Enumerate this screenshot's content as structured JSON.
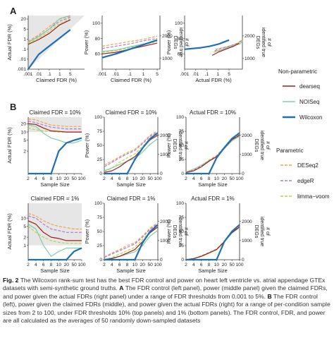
{
  "panels": {
    "A": "A",
    "B": "B"
  },
  "colors": {
    "dearseq": "#a01c1c",
    "NOISeq": "#7fcfa6",
    "Wilcoxon": "#1f6fb2",
    "DESeq2": "#f1a24c",
    "edgeR": "#b07ccf",
    "limma-voom": "#b8d44b",
    "shade": "#e6e6e6"
  },
  "labels": {
    "actual_fdr": "Actual FDR (%)",
    "claimed_fdr": "Claimed FDR (%)",
    "actual_fdr_x": "Actual FDR (%)",
    "power": "Power (%)",
    "degs_line1": "# of",
    "degs_line2": "identified true",
    "degs_line3": "DEGs",
    "sample_size": "Sample Size",
    "title_claimed10": "Claimed FDR = 10%",
    "title_actual10": "Actual FDR = 10%",
    "title_claimed1": "Claimed FDR = 1%",
    "title_actual1": "Actual FDR = 1%"
  },
  "ticks": {
    "fdr_log": [
      ".001",
      ".01",
      ".1",
      "1",
      "5",
      "20"
    ],
    "claimed_x": [
      ".001",
      ".01",
      ".1",
      "1",
      "5",
      "20"
    ],
    "sample_x": [
      "2",
      "4",
      "6",
      "8",
      "10",
      "20",
      "50",
      "100"
    ],
    "power_A": [
      "60",
      "80",
      "100"
    ],
    "degs_A": [
      "2000",
      "1000"
    ],
    "actual_fdr_B": [
      "2",
      "5",
      "10",
      "20"
    ],
    "power_B": [
      "0",
      "25",
      "50",
      "75",
      "100"
    ],
    "degs_B": [
      "2000",
      "1000",
      "0"
    ]
  },
  "legend": {
    "nonparam_title": "Non-parametric",
    "param_title": "Parametric",
    "nonparam": [
      {
        "name": "dearseq",
        "color": "#a01c1c",
        "dashed": false
      },
      {
        "name": "NOISeq",
        "color": "#7fcfa6",
        "dashed": false
      },
      {
        "name": "Wilcoxon",
        "color": "#1f6fb2",
        "dashed": false
      }
    ],
    "param": [
      {
        "name": "DESeq2",
        "color": "#f1a24c",
        "dashed": true
      },
      {
        "name": "edgeR",
        "color": "#b07ccf",
        "dashed": true
      },
      {
        "name": "limma−voom",
        "color": "#b8d44b",
        "dashed": true
      }
    ]
  },
  "chart_data": [
    {
      "type": "line",
      "panel": "A-left",
      "xlabel": "Claimed FDR (%)",
      "ylabel": "Actual FDR (%)",
      "x_scale": "log",
      "y_scale": "log",
      "x": [
        0.001,
        0.01,
        0.1,
        1,
        5
      ],
      "series": [
        {
          "name": "dearseq",
          "values": [
            0.3,
            0.9,
            2.5,
            9,
            18
          ]
        },
        {
          "name": "NOISeq",
          "values": [
            0.5,
            1.5,
            5,
            22,
            40
          ]
        },
        {
          "name": "Wilcoxon",
          "values": [
            0.001,
            0.03,
            0.2,
            1.2,
            4.5
          ]
        },
        {
          "name": "DESeq2",
          "values": [
            0.6,
            2,
            7,
            20,
            35
          ]
        },
        {
          "name": "edgeR",
          "values": [
            0.5,
            1.6,
            5,
            15,
            28
          ]
        },
        {
          "name": "limma-voom",
          "values": [
            0.4,
            1.2,
            3.5,
            11,
            20
          ]
        }
      ]
    },
    {
      "type": "line",
      "panel": "A-middle",
      "xlabel": "Claimed FDR (%)",
      "ylabel": "Power (%)",
      "x_scale": "log",
      "x": [
        0.001,
        0.01,
        0.1,
        1,
        5
      ],
      "series": [
        {
          "name": "dearseq",
          "values": [
            60,
            62,
            66,
            70,
            74
          ]
        },
        {
          "name": "NOISeq",
          "values": [
            63,
            65,
            69,
            73,
            77
          ]
        },
        {
          "name": "Wilcoxon",
          "values": [
            55,
            60,
            66,
            72,
            78
          ]
        },
        {
          "name": "DESeq2",
          "values": [
            70,
            73,
            76,
            79,
            83
          ]
        },
        {
          "name": "edgeR",
          "values": [
            67,
            70,
            73,
            77,
            80
          ]
        },
        {
          "name": "limma-voom",
          "values": [
            62,
            64,
            68,
            72,
            76
          ]
        }
      ]
    },
    {
      "type": "line",
      "panel": "A-right",
      "xlabel": "Actual FDR (%)",
      "ylabel": "Power (%)",
      "x_scale": "log",
      "series": [
        {
          "name": "dearseq",
          "x": [
            0.3,
            1,
            3,
            9,
            18
          ],
          "values": [
            58,
            62,
            66,
            70,
            74
          ]
        },
        {
          "name": "NOISeq",
          "x": [
            0.5,
            1.5,
            5,
            20,
            30
          ],
          "values": [
            63,
            65,
            69,
            73,
            77
          ]
        },
        {
          "name": "Wilcoxon",
          "x": [
            0.001,
            0.03,
            0.2,
            1.2,
            5
          ],
          "values": [
            66,
            68,
            70,
            73,
            78
          ]
        },
        {
          "name": "DESeq2",
          "x": [
            0.6,
            2,
            7,
            20,
            30
          ],
          "values": [
            66,
            68,
            71,
            75,
            79
          ]
        },
        {
          "name": "edgeR",
          "x": [
            0.5,
            1.6,
            5,
            15,
            25
          ],
          "values": [
            64,
            67,
            70,
            74,
            78
          ]
        },
        {
          "name": "limma-voom",
          "x": [
            0.4,
            1.2,
            3.5,
            11,
            20
          ],
          "values": [
            62,
            64,
            68,
            72,
            76
          ]
        }
      ]
    },
    {
      "type": "line",
      "panel": "B-top-left",
      "title": "Claimed FDR = 10%",
      "xlabel": "Sample Size",
      "ylabel": "Actual FDR (%)",
      "x": [
        2,
        4,
        6,
        8,
        10,
        20,
        50,
        100
      ],
      "series": [
        {
          "name": "dearseq",
          "values": [
            20,
            19,
            14,
            11,
            10.5,
            10,
            10,
            10
          ]
        },
        {
          "name": "NOISeq",
          "values": [
            18,
            16,
            9,
            6,
            5,
            4,
            4,
            5
          ]
        },
        {
          "name": "Wilcoxon",
          "values": [
            0.001,
            0.001,
            0.001,
            0.001,
            2,
            4,
            5,
            6
          ]
        },
        {
          "name": "DESeq2",
          "values": [
            30,
            28,
            22,
            18,
            17,
            16,
            16,
            16
          ]
        },
        {
          "name": "edgeR",
          "values": [
            25,
            22,
            18,
            15,
            14,
            13,
            13,
            13
          ]
        },
        {
          "name": "limma-voom",
          "values": [
            14,
            12,
            11,
            10.5,
            10,
            10,
            10,
            10
          ]
        }
      ]
    },
    {
      "type": "line",
      "panel": "B-top-middle",
      "title": "Claimed FDR = 10%",
      "xlabel": "Sample Size",
      "ylabel": "Power (%)",
      "x": [
        2,
        4,
        6,
        8,
        10,
        20,
        50,
        100
      ],
      "series": [
        {
          "name": "dearseq",
          "values": [
            2,
            5,
            12,
            22,
            30,
            45,
            60,
            68
          ]
        },
        {
          "name": "NOISeq",
          "values": [
            5,
            10,
            16,
            22,
            27,
            38,
            52,
            62
          ]
        },
        {
          "name": "Wilcoxon",
          "values": [
            0,
            0,
            0,
            0,
            25,
            45,
            62,
            72
          ]
        },
        {
          "name": "DESeq2",
          "values": [
            15,
            22,
            30,
            37,
            43,
            55,
            68,
            76
          ]
        },
        {
          "name": "edgeR",
          "values": [
            12,
            20,
            28,
            35,
            41,
            53,
            66,
            74
          ]
        },
        {
          "name": "limma-voom",
          "values": [
            3,
            10,
            20,
            28,
            35,
            48,
            62,
            70
          ]
        }
      ]
    },
    {
      "type": "line",
      "panel": "B-top-right",
      "title": "Actual FDR = 10%",
      "xlabel": "Sample Size",
      "ylabel": "Power (%)",
      "x": [
        2,
        4,
        6,
        8,
        10,
        20,
        50,
        100
      ],
      "series": [
        {
          "name": "dearseq",
          "values": [
            2,
            5,
            12,
            22,
            30,
            45,
            60,
            68
          ]
        },
        {
          "name": "NOISeq",
          "values": [
            3,
            8,
            15,
            23,
            30,
            44,
            58,
            66
          ]
        },
        {
          "name": "Wilcoxon",
          "values": [
            0,
            0,
            0,
            0,
            28,
            46,
            62,
            72
          ]
        },
        {
          "name": "DESeq2",
          "values": [
            2,
            6,
            14,
            24,
            32,
            47,
            61,
            69
          ]
        },
        {
          "name": "edgeR",
          "values": [
            2,
            6,
            13,
            23,
            31,
            46,
            60,
            68
          ]
        },
        {
          "name": "limma-voom",
          "values": [
            2,
            5,
            12,
            22,
            30,
            45,
            60,
            68
          ]
        }
      ]
    },
    {
      "type": "line",
      "panel": "B-bottom-left",
      "title": "Claimed FDR = 1%",
      "xlabel": "Sample Size",
      "ylabel": "Actual FDR (%)",
      "x": [
        2,
        4,
        6,
        8,
        10,
        20,
        50,
        100
      ],
      "series": [
        {
          "name": "dearseq",
          "values": [
            8,
            6,
            3,
            2,
            1.8,
            1.5,
            1.5,
            1.5
          ]
        },
        {
          "name": "NOISeq",
          "values": [
            6,
            4,
            1,
            0.4,
            0.6,
            0.8,
            0.8,
            0.8
          ]
        },
        {
          "name": "Wilcoxon",
          "values": [
            0.001,
            0.001,
            0.001,
            0.001,
            0.001,
            0.3,
            0.6,
            0.8
          ]
        },
        {
          "name": "DESeq2",
          "values": [
            15,
            12,
            8,
            6,
            5,
            4.5,
            4,
            4
          ]
        },
        {
          "name": "edgeR",
          "values": [
            12,
            10,
            6,
            4,
            3.5,
            3,
            3,
            3
          ]
        },
        {
          "name": "limma-voom",
          "values": [
            5,
            3,
            2,
            1.5,
            1.3,
            1.2,
            1.2,
            1.2
          ]
        }
      ]
    },
    {
      "type": "line",
      "panel": "B-bottom-middle",
      "title": "Claimed FDR = 1%",
      "xlabel": "Sample Size",
      "ylabel": "Power (%)",
      "x": [
        2,
        4,
        6,
        8,
        10,
        20,
        50,
        100
      ],
      "series": [
        {
          "name": "dearseq",
          "values": [
            0,
            2,
            6,
            12,
            18,
            32,
            48,
            58
          ]
        },
        {
          "name": "NOISeq",
          "values": [
            1,
            3,
            6,
            10,
            14,
            25,
            42,
            52
          ]
        },
        {
          "name": "Wilcoxon",
          "values": [
            0,
            0,
            0,
            0,
            0,
            30,
            50,
            62
          ]
        },
        {
          "name": "DESeq2",
          "values": [
            5,
            12,
            18,
            25,
            30,
            42,
            56,
            66
          ]
        },
        {
          "name": "edgeR",
          "values": [
            4,
            10,
            16,
            22,
            28,
            40,
            54,
            64
          ]
        },
        {
          "name": "limma-voom",
          "values": [
            0,
            4,
            10,
            16,
            22,
            36,
            50,
            60
          ]
        }
      ]
    },
    {
      "type": "line",
      "panel": "B-bottom-right",
      "title": "Actual FDR = 1%",
      "xlabel": "Sample Size",
      "ylabel": "Power (%)",
      "x": [
        2,
        4,
        6,
        8,
        10,
        20,
        50,
        100
      ],
      "series": [
        {
          "name": "dearseq",
          "values": [
            0,
            2,
            6,
            12,
            18,
            32,
            48,
            58
          ]
        },
        {
          "name": "NOISeq",
          "values": [
            0,
            2,
            6,
            12,
            18,
            31,
            47,
            57
          ]
        },
        {
          "name": "Wilcoxon",
          "values": [
            0,
            0,
            0,
            0,
            0,
            32,
            50,
            62
          ]
        },
        {
          "name": "DESeq2",
          "values": [
            0,
            2,
            7,
            13,
            19,
            33,
            49,
            59
          ]
        },
        {
          "name": "edgeR",
          "values": [
            0,
            2,
            6,
            12,
            18,
            32,
            48,
            58
          ]
        },
        {
          "name": "limma-voom",
          "values": [
            0,
            2,
            6,
            12,
            18,
            32,
            48,
            58
          ]
        }
      ]
    }
  ],
  "caption": {
    "fig_label": "Fig. 2",
    "intro": "The Wilcoxon rank-sum test has the best FDR control and power on heart left ventricle vs. atrial appendage GTEx datasets with semi-synthetic ground truths.",
    "A_label": "A",
    "A_text": "The FDR control (left panel), power (middle panel) given the claimed FDRs, and power given the actual FDRs (right panel) under a range of FDR thresholds from 0.001 to 5%.",
    "B_label": "B",
    "B_text": "The FDR control (left), power given the claimed FDRs (middle), and power given the actual FDRs (right) for a range of per-condition sample sizes from 2 to 100, under FDR thresholds 10% (top panels) and 1% (bottom panels). The FDR control, FDR, and power are all calculated as the averages of 50 randomly down-sampled datasets"
  }
}
